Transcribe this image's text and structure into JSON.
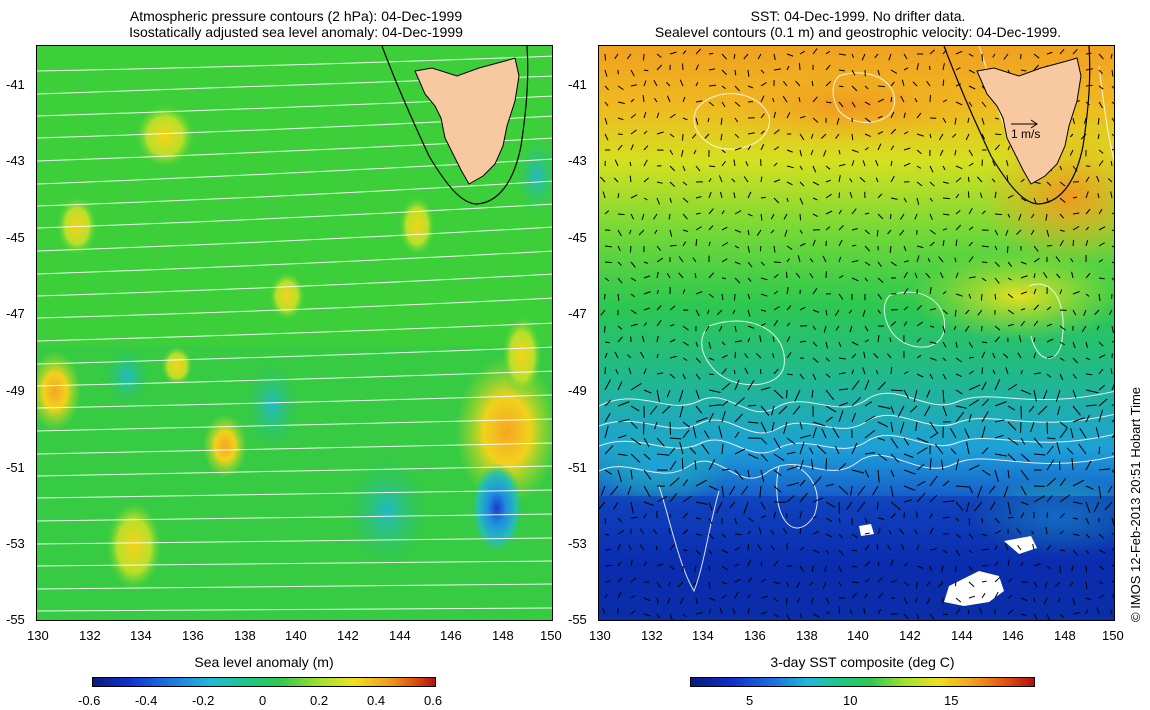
{
  "left_panel": {
    "title_line1": "Atmospheric pressure contours (2 hPa): 04-Dec-1999",
    "title_line2": "Isostatically adjusted sea level anomaly: 04-Dec-1999",
    "x_ticks": [
      "130",
      "132",
      "134",
      "136",
      "138",
      "140",
      "142",
      "144",
      "146",
      "148",
      "150"
    ],
    "y_ticks": [
      "-41",
      "-43",
      "-45",
      "-47",
      "-49",
      "-51",
      "-53",
      "-55"
    ],
    "colorbar": {
      "title": "Sea level anomaly (m)",
      "ticks": [
        "-0.6",
        "-0.4",
        "-0.2",
        "0",
        "0.2",
        "0.4",
        "0.6"
      ]
    }
  },
  "right_panel": {
    "title_line1": "SST: 04-Dec-1999. No drifter data.",
    "title_line2": "Sealevel contours (0.1 m) and geostrophic velocity: 04-Dec-1999.",
    "x_ticks": [
      "130",
      "132",
      "134",
      "136",
      "138",
      "140",
      "142",
      "144",
      "146",
      "148",
      "150"
    ],
    "y_ticks": [
      "-41",
      "-43",
      "-45",
      "-47",
      "-49",
      "-51",
      "-53",
      "-55"
    ],
    "velocity_scale_label": "1 m/s",
    "colorbar": {
      "title": "3-day SST composite (deg C)",
      "ticks": [
        "5",
        "10",
        "15"
      ]
    }
  },
  "credit": "© IMOS 12-Feb-2013 20:51 Hobart Time",
  "colors": {
    "land": "#f8c9a0",
    "slope_green": "#1ec83c",
    "cold_blue": "#0a2ab8",
    "warm_orange": "#f0a020",
    "contour_white": "#ffffff"
  }
}
